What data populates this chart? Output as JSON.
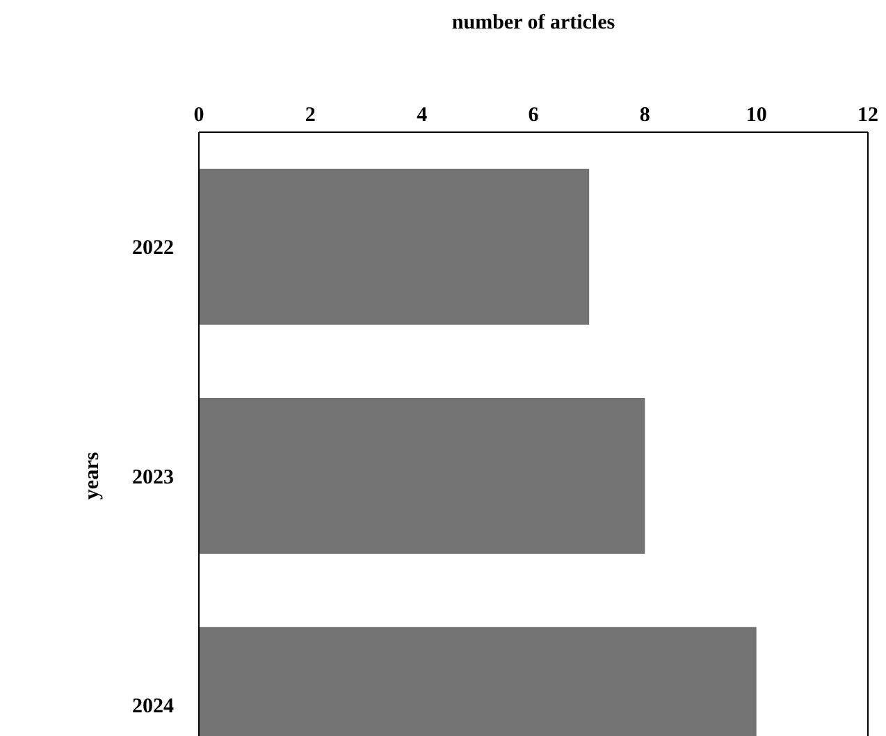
{
  "chart_data": {
    "type": "bar",
    "orientation": "horizontal",
    "xlabel": "number of articles",
    "ylabel": "years",
    "categories": [
      "2022",
      "2023",
      "2024"
    ],
    "values": [
      7,
      8,
      10
    ],
    "color": "#737373",
    "xlim": [
      0,
      12
    ],
    "xticks": [
      0,
      2,
      4,
      6,
      8,
      10,
      12
    ],
    "grid": false,
    "legend": false
  }
}
